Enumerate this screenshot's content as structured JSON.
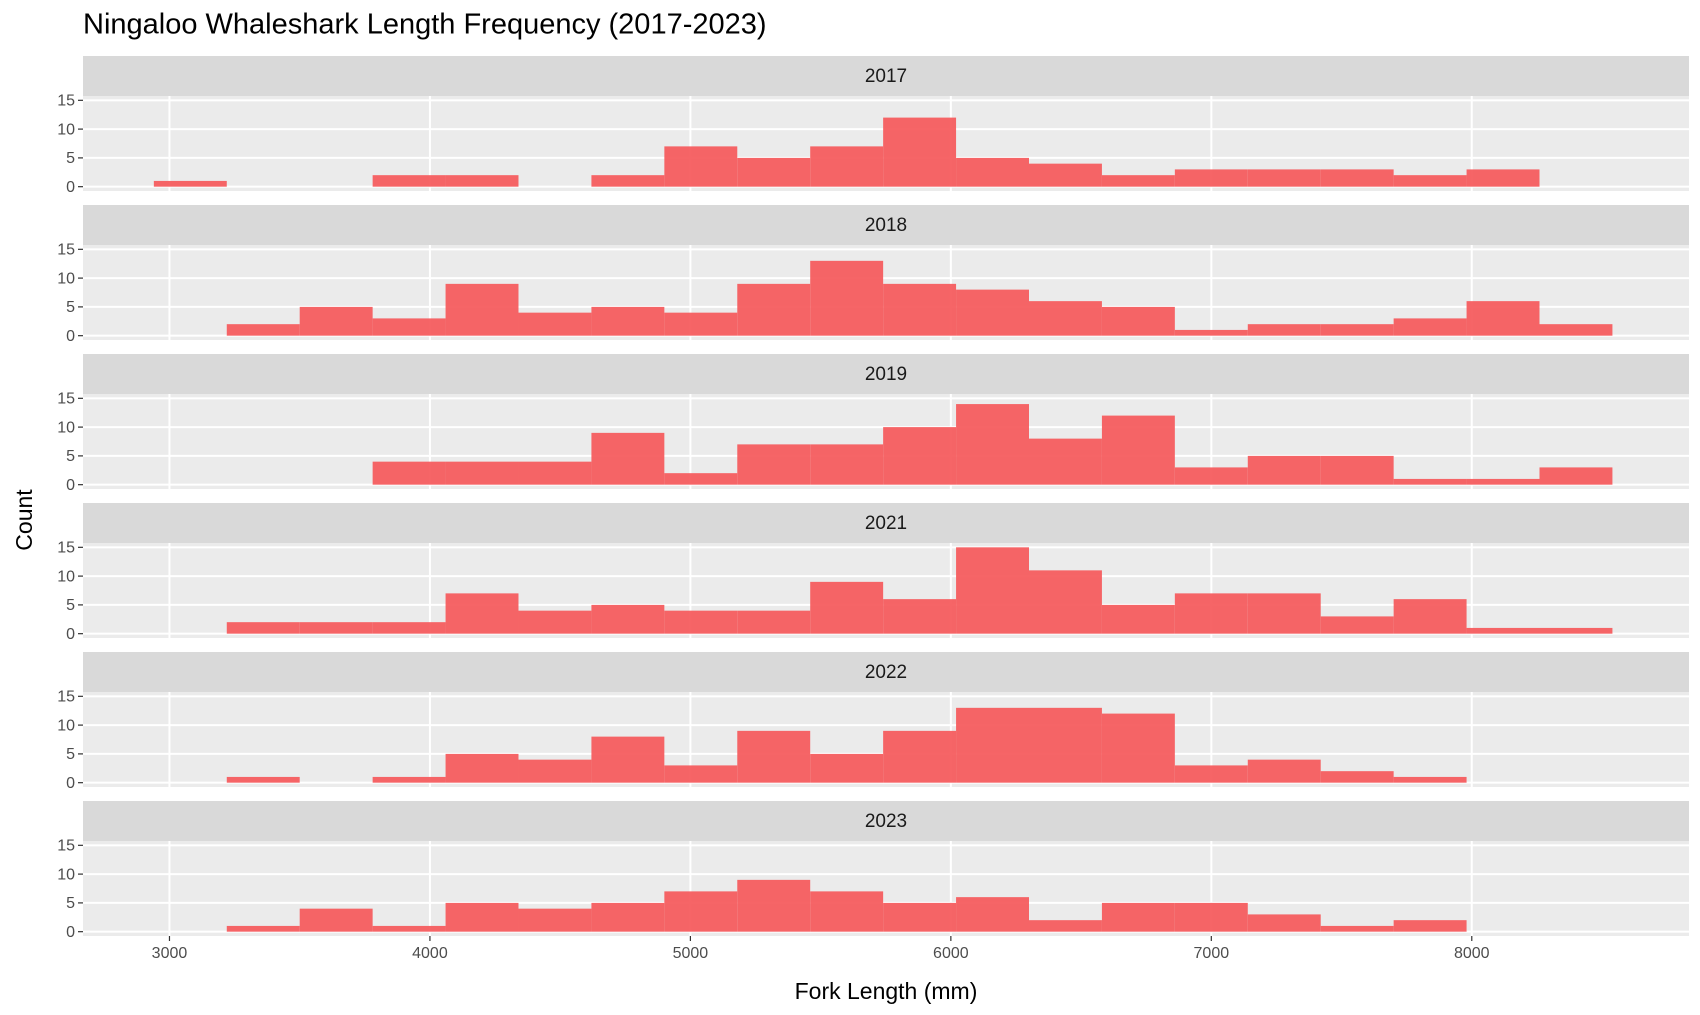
{
  "chart_data": {
    "type": "histogram",
    "title": "Ningaloo Whaleshark Length Frequency (2017-2023)",
    "x_label": "Fork Length (mm)",
    "y_label": "Count",
    "color": "#f65d5f",
    "grid": true,
    "bins": [
      2940,
      3220,
      3500,
      3780,
      4060,
      4340,
      4620,
      4900,
      5180,
      5460,
      5740,
      6020,
      6300,
      6580,
      6860,
      7140,
      7420,
      7700,
      7980,
      8260,
      8540
    ],
    "xlim": [
      2668,
      8834
    ],
    "xticks": [
      3000,
      4000,
      5000,
      6000,
      7000,
      8000
    ],
    "ylim": [
      -0.75,
      15.75
    ],
    "yticks": [
      0,
      5,
      10,
      15
    ],
    "panels": [
      {
        "title": "2017",
        "counts": [
          1,
          0,
          0,
          2,
          2,
          0,
          2,
          7,
          5,
          7,
          12,
          5,
          4,
          2,
          3,
          3,
          3,
          2,
          3,
          0
        ]
      },
      {
        "title": "2018",
        "counts": [
          0,
          2,
          5,
          3,
          9,
          4,
          5,
          4,
          9,
          13,
          9,
          8,
          6,
          5,
          1,
          2,
          2,
          3,
          6,
          2
        ]
      },
      {
        "title": "2019",
        "counts": [
          0,
          0,
          0,
          4,
          4,
          4,
          9,
          2,
          7,
          7,
          10,
          14,
          8,
          12,
          3,
          5,
          5,
          1,
          1,
          3
        ]
      },
      {
        "title": "2021",
        "counts": [
          0,
          2,
          2,
          2,
          7,
          4,
          5,
          4,
          4,
          9,
          6,
          15,
          11,
          5,
          7,
          7,
          3,
          6,
          1,
          1
        ]
      },
      {
        "title": "2022",
        "counts": [
          0,
          1,
          0,
          1,
          5,
          4,
          8,
          3,
          9,
          5,
          9,
          13,
          13,
          12,
          3,
          4,
          2,
          1,
          0,
          0
        ]
      },
      {
        "title": "2023",
        "counts": [
          0,
          1,
          4,
          1,
          5,
          4,
          5,
          7,
          9,
          7,
          5,
          6,
          2,
          5,
          5,
          3,
          1,
          2,
          0,
          0
        ]
      }
    ]
  }
}
